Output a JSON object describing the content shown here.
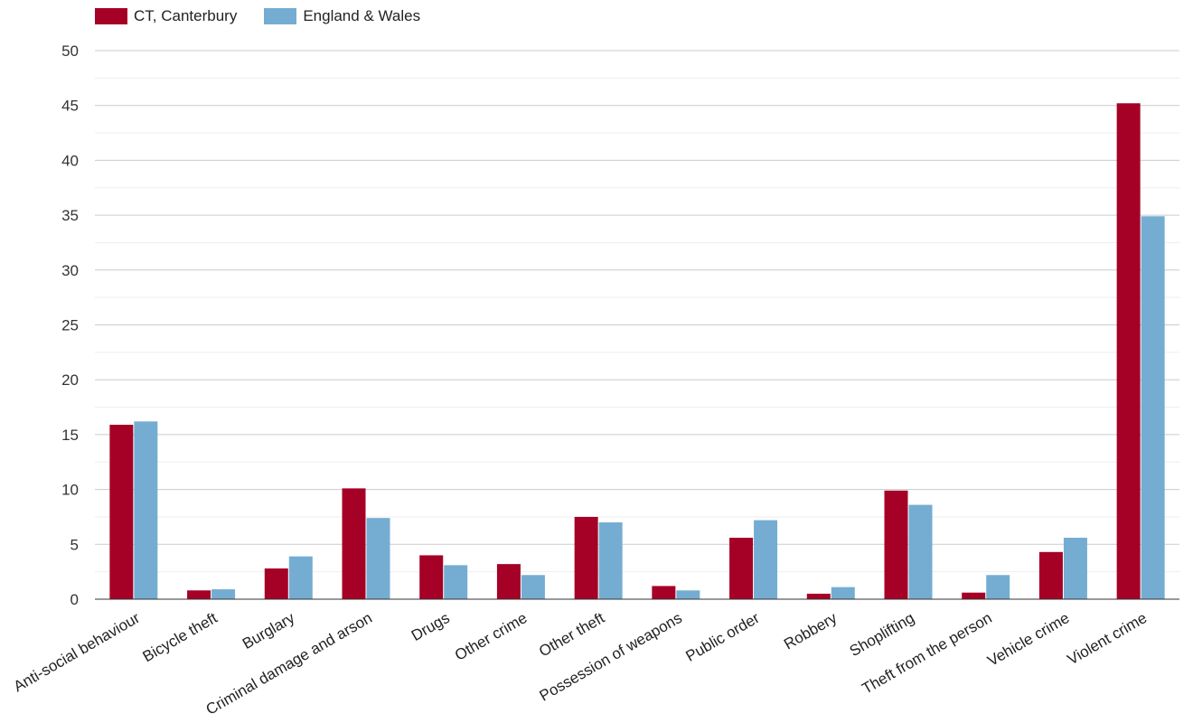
{
  "chart_data": {
    "type": "bar",
    "title": "",
    "xlabel": "",
    "ylabel": "",
    "ylim": [
      0,
      50
    ],
    "yticks": [
      0,
      5,
      10,
      15,
      20,
      25,
      30,
      35,
      40,
      45,
      50
    ],
    "grid": true,
    "legend_position": "top-left",
    "categories": [
      "Anti-social behaviour",
      "Bicycle theft",
      "Burglary",
      "Criminal damage and arson",
      "Drugs",
      "Other crime",
      "Other theft",
      "Possession of weapons",
      "Public order",
      "Robbery",
      "Shoplifting",
      "Theft from the person",
      "Vehicle crime",
      "Violent crime"
    ],
    "series": [
      {
        "name": "CT, Canterbury",
        "color": "#a50026",
        "values": [
          15.9,
          0.8,
          2.8,
          10.1,
          4.0,
          3.2,
          7.5,
          1.2,
          5.6,
          0.5,
          9.9,
          0.6,
          4.3,
          45.2
        ]
      },
      {
        "name": "England & Wales",
        "color": "#74add1",
        "values": [
          16.2,
          0.9,
          3.9,
          7.4,
          3.1,
          2.2,
          7.0,
          0.8,
          7.2,
          1.1,
          8.6,
          2.2,
          5.6,
          34.9
        ]
      }
    ]
  }
}
